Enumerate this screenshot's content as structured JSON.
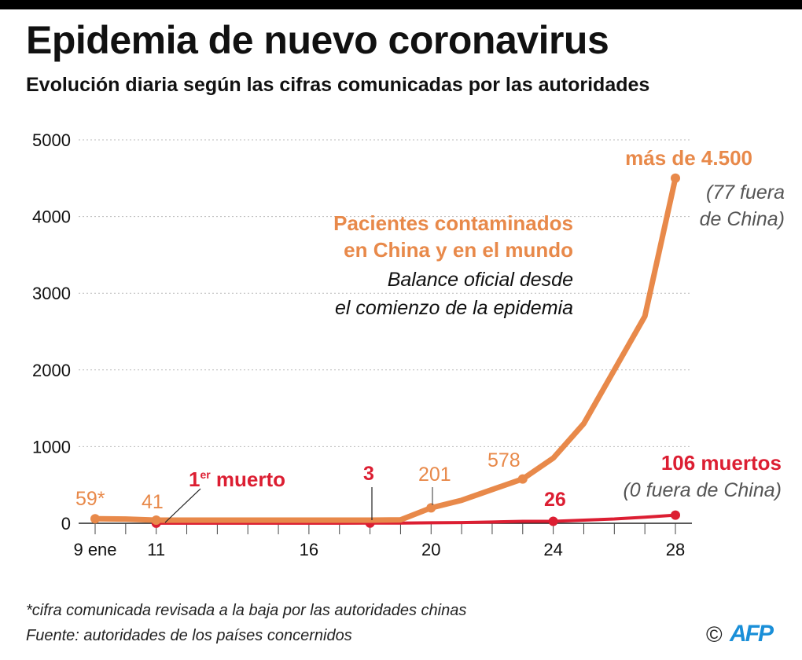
{
  "title": "Epidemia de nuevo coronavirus",
  "subtitle": "Evolución diaria según las cifras comunicadas por las autoridades",
  "footnotes": [
    "*cifra comunicada revisada a la baja por las autoridades chinas",
    "Fuente: autoridades de los países concernidos"
  ],
  "credit": {
    "copyright": "©",
    "logo": "AFP"
  },
  "chart_data": {
    "type": "line",
    "ylim": [
      0,
      5000
    ],
    "yticks": [
      0,
      1000,
      2000,
      3000,
      4000,
      5000
    ],
    "xlim": [
      9,
      28
    ],
    "xticks": [
      {
        "v": 9,
        "label": "9 ene"
      },
      {
        "v": 11,
        "label": "11"
      },
      {
        "v": 16,
        "label": "16"
      },
      {
        "v": 20,
        "label": "20"
      },
      {
        "v": 24,
        "label": "24"
      },
      {
        "v": 28,
        "label": "28"
      }
    ],
    "grid": true,
    "colors": {
      "cases": "#e8894a",
      "deaths": "#dc1e32",
      "note": "#555555"
    },
    "series": [
      {
        "key": "cases",
        "name": "Pacientes contaminados en China y en el mundo",
        "subname": "Balance oficial desde el comienzo de la epidemia",
        "x": [
          9,
          10,
          11,
          12,
          13,
          14,
          15,
          16,
          17,
          18,
          19,
          20,
          21,
          22,
          23,
          24,
          25,
          26,
          27,
          28
        ],
        "values": [
          59,
          55,
          41,
          41,
          41,
          41,
          41,
          41,
          41,
          41,
          45,
          201,
          300,
          440,
          578,
          850,
          1300,
          2000,
          2700,
          4500
        ],
        "markers": [
          9,
          11,
          20,
          23,
          28
        ]
      },
      {
        "key": "deaths",
        "name": "106 muertos",
        "x": [
          11,
          12,
          13,
          14,
          15,
          16,
          17,
          18,
          19,
          20,
          21,
          22,
          23,
          24,
          25,
          26,
          27,
          28
        ],
        "values": [
          1,
          1,
          1,
          1,
          1,
          1,
          1,
          3,
          3,
          6,
          9,
          17,
          25,
          26,
          41,
          56,
          80,
          106
        ],
        "markers": [
          11,
          18,
          24,
          28
        ]
      }
    ],
    "annotations": {
      "cases_9": "59*",
      "cases_11": "41",
      "cases_20": "201",
      "cases_23": "578",
      "cases_28": "más de 4.500",
      "cases_28_note_1": "(77 fuera",
      "cases_28_note_2": "de China)",
      "deaths_first": "1",
      "deaths_first_sup": "er",
      "deaths_first_rest": " muerto",
      "deaths_18": "3",
      "deaths_24": "26",
      "deaths_28": "106 muertos",
      "deaths_28_note": "(0 fuera de China)"
    }
  }
}
